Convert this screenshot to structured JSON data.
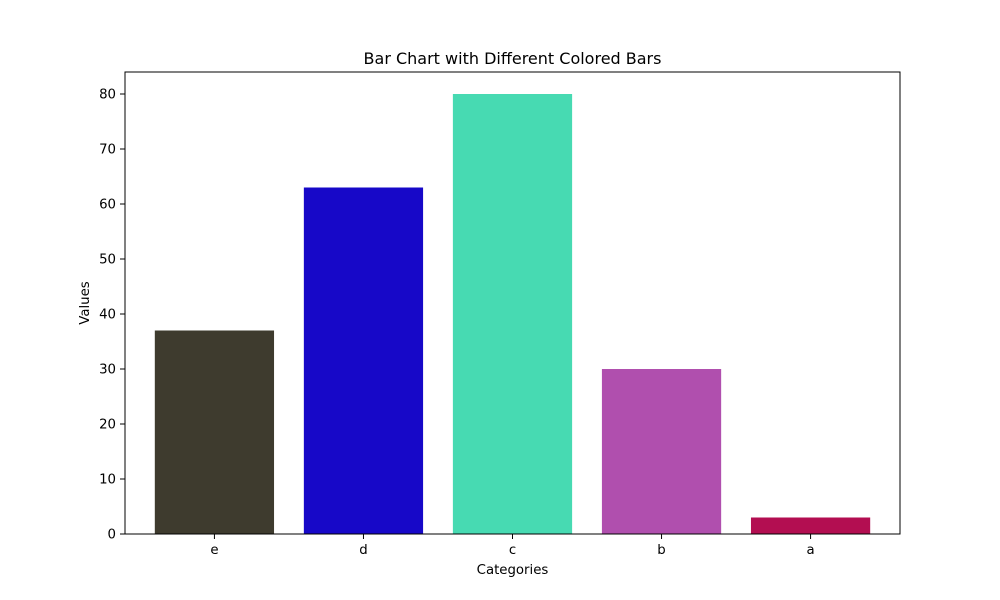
{
  "chart_data": {
    "type": "bar",
    "title": "Bar Chart with Different Colored Bars",
    "xlabel": "Categories",
    "ylabel": "Values",
    "categories": [
      "e",
      "d",
      "c",
      "b",
      "a"
    ],
    "values": [
      37,
      63,
      80,
      30,
      3
    ],
    "colors": [
      "#3e3b2e",
      "#1708c8",
      "#47dab2",
      "#b04fae",
      "#b30e51"
    ],
    "ylim": [
      0,
      84
    ],
    "yticks": [
      0,
      10,
      20,
      30,
      40,
      50,
      60,
      70,
      80
    ],
    "grid": false,
    "legend": "none"
  }
}
